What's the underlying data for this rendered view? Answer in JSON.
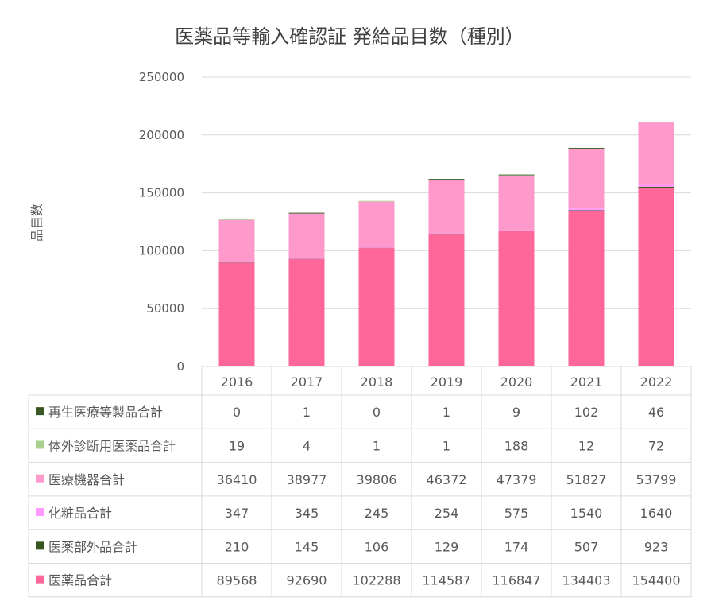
{
  "chart_data": {
    "type": "bar",
    "stacked": true,
    "title": "医薬品等輸入確認証 発給品目数（種別）",
    "xlabel": "",
    "ylabel": "品目数",
    "ylim": [
      0,
      250000
    ],
    "yticks": [
      0,
      50000,
      100000,
      150000,
      200000,
      250000
    ],
    "grid": true,
    "legend": "data-table-left",
    "categories": [
      "2016",
      "2017",
      "2018",
      "2019",
      "2020",
      "2021",
      "2022"
    ],
    "series": [
      {
        "name": "医薬品合計",
        "color": "#FF6699",
        "values": [
          89568,
          92690,
          102288,
          114587,
          116847,
          134403,
          154400
        ]
      },
      {
        "name": "医薬部外品合計",
        "color": "#375623",
        "values": [
          210,
          145,
          106,
          129,
          174,
          507,
          923
        ]
      },
      {
        "name": "化粧品合計",
        "color": "#FF99FF",
        "values": [
          347,
          345,
          245,
          254,
          575,
          1540,
          1640
        ]
      },
      {
        "name": "医療機器合計",
        "color": "#FF99CC",
        "values": [
          36410,
          38977,
          39806,
          46372,
          47379,
          51827,
          53799
        ]
      },
      {
        "name": "体外診断用医薬品合計",
        "color": "#A9D18E",
        "values": [
          19,
          4,
          1,
          1,
          188,
          12,
          72
        ]
      },
      {
        "name": "再生医療等製品合計",
        "color": "#375623",
        "values": [
          0,
          1,
          0,
          1,
          9,
          102,
          46
        ]
      }
    ]
  }
}
